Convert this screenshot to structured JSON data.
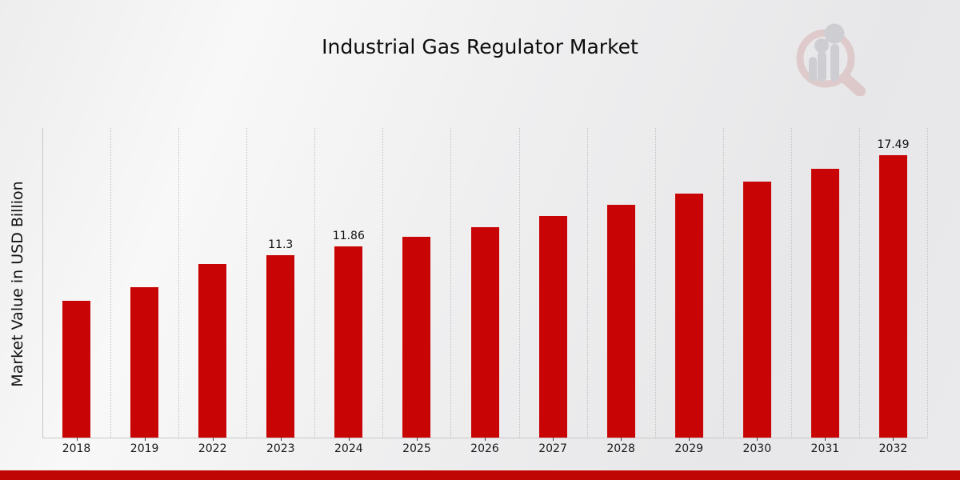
{
  "title": "Industrial Gas Regulator Market",
  "logo": {
    "name": "market-research-watermark-logo",
    "ring_color": "#d3a6a6",
    "bars_color": "#aeaeb6"
  },
  "footer": {
    "accent_color": "#c00505"
  },
  "chart_data": {
    "type": "bar",
    "title": "Industrial Gas Regulator Market",
    "xlabel": "",
    "ylabel": "Market Value in USD Billion",
    "categories": [
      "2018",
      "2019",
      "2022",
      "2023",
      "2024",
      "2025",
      "2026",
      "2027",
      "2028",
      "2029",
      "2030",
      "2031",
      "2032"
    ],
    "values": [
      8.5,
      9.33,
      10.77,
      11.3,
      11.86,
      12.45,
      13.07,
      13.73,
      14.42,
      15.13,
      15.86,
      16.65,
      17.49
    ],
    "data_labels": {
      "2023": "11.3",
      "2024": "11.86",
      "2032": "17.49"
    },
    "bar_color": "#c90404",
    "ylim": [
      0,
      19.2
    ],
    "grid": "vertical-dotted",
    "legend": "none"
  }
}
